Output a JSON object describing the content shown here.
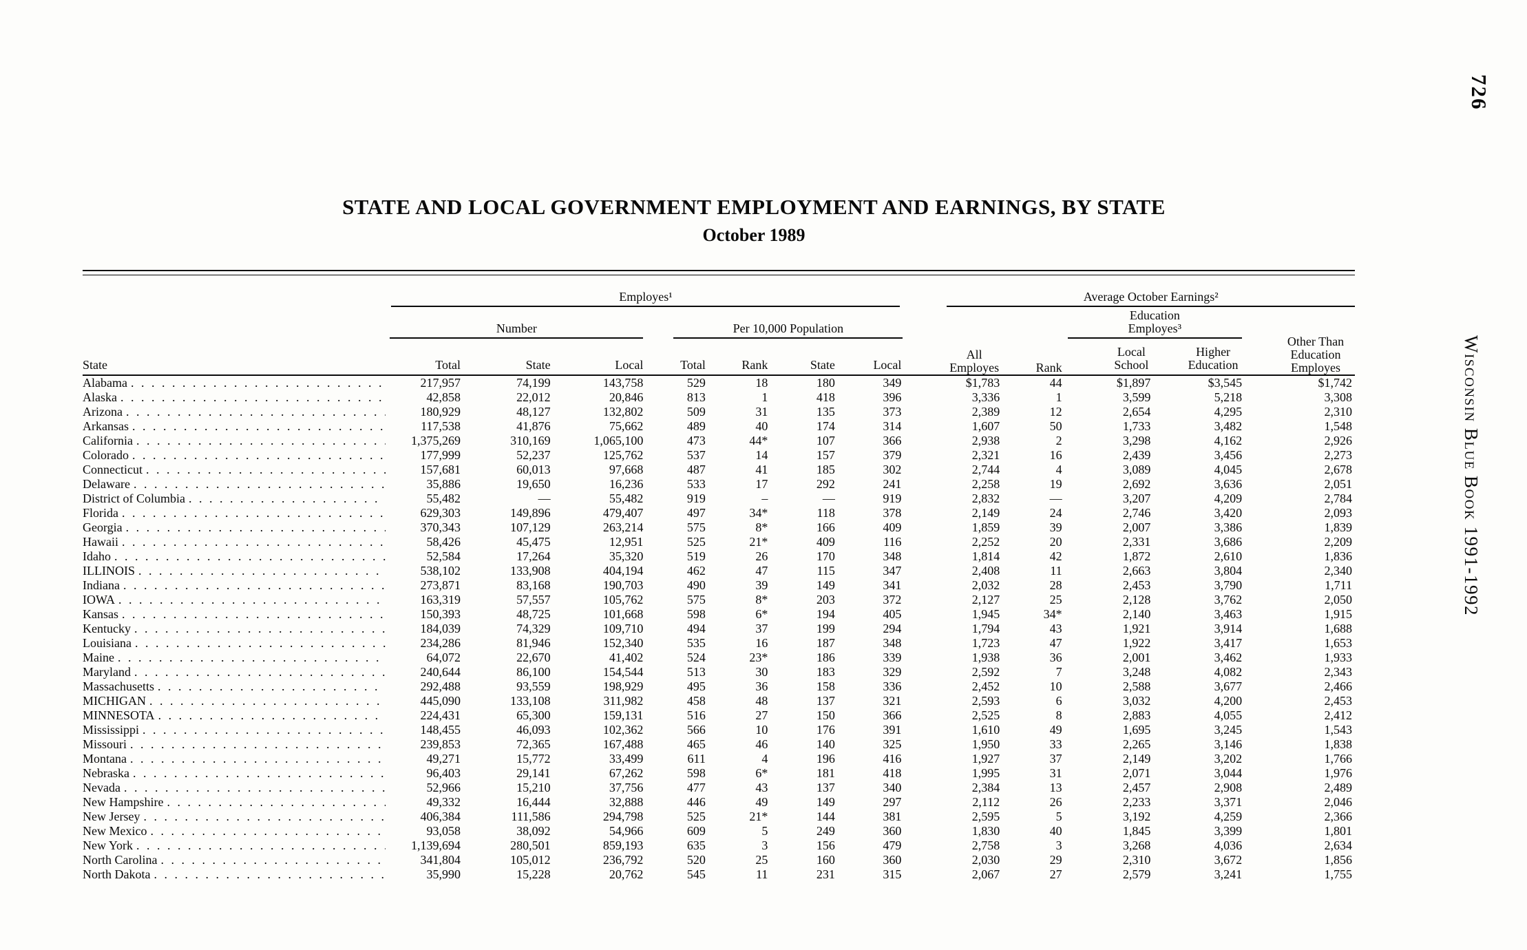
{
  "page": {
    "page_number": "726",
    "side_text": "Wisconsin Blue Book 1991-1992",
    "title": "STATE AND LOCAL GOVERNMENT EMPLOYMENT AND EARNINGS, BY STATE",
    "subtitle": "October 1989"
  },
  "table": {
    "header": {
      "state": "State",
      "employes_group": "Employes¹",
      "earnings_group": "Average October Earnings²",
      "number_group": "Number",
      "per_10000_group": "Per 10,000 Population",
      "education_group": "Education Employes³",
      "col_total_number": "Total",
      "col_state_number": "State",
      "col_local_number": "Local",
      "col_total_pop": "Total",
      "col_rank_pop": "Rank",
      "col_state_pop": "State",
      "col_local_pop": "Local",
      "col_all_employes": "All Employes",
      "col_rank_earnings": "Rank",
      "col_local_school": "Local School",
      "col_higher_education": "Higher Education",
      "col_other": "Other Than Education Employes"
    },
    "rows": [
      [
        "Alabama",
        "217,957",
        "74,199",
        "143,758",
        "529",
        "18",
        "180",
        "349",
        "$1,783",
        "44",
        "$1,897",
        "$3,545",
        "$1,742"
      ],
      [
        "Alaska",
        "42,858",
        "22,012",
        "20,846",
        "813",
        "1",
        "418",
        "396",
        "3,336",
        "1",
        "3,599",
        "5,218",
        "3,308"
      ],
      [
        "Arizona",
        "180,929",
        "48,127",
        "132,802",
        "509",
        "31",
        "135",
        "373",
        "2,389",
        "12",
        "2,654",
        "4,295",
        "2,310"
      ],
      [
        "Arkansas",
        "117,538",
        "41,876",
        "75,662",
        "489",
        "40",
        "174",
        "314",
        "1,607",
        "50",
        "1,733",
        "3,482",
        "1,548"
      ],
      [
        "California",
        "1,375,269",
        "310,169",
        "1,065,100",
        "473",
        "44*",
        "107",
        "366",
        "2,938",
        "2",
        "3,298",
        "4,162",
        "2,926"
      ],
      [
        "Colorado",
        "177,999",
        "52,237",
        "125,762",
        "537",
        "14",
        "157",
        "379",
        "2,321",
        "16",
        "2,439",
        "3,456",
        "2,273"
      ],
      [
        "Connecticut",
        "157,681",
        "60,013",
        "97,668",
        "487",
        "41",
        "185",
        "302",
        "2,744",
        "4",
        "3,089",
        "4,045",
        "2,678"
      ],
      [
        "Delaware",
        "35,886",
        "19,650",
        "16,236",
        "533",
        "17",
        "292",
        "241",
        "2,258",
        "19",
        "2,692",
        "3,636",
        "2,051"
      ],
      [
        "District of Columbia",
        "55,482",
        "—",
        "55,482",
        "919",
        "–",
        "—",
        "919",
        "2,832",
        "—",
        "3,207",
        "4,209",
        "2,784"
      ],
      [
        "Florida",
        "629,303",
        "149,896",
        "479,407",
        "497",
        "34*",
        "118",
        "378",
        "2,149",
        "24",
        "2,746",
        "3,420",
        "2,093"
      ],
      [
        "Georgia",
        "370,343",
        "107,129",
        "263,214",
        "575",
        "8*",
        "166",
        "409",
        "1,859",
        "39",
        "2,007",
        "3,386",
        "1,839"
      ],
      [
        "Hawaii",
        "58,426",
        "45,475",
        "12,951",
        "525",
        "21*",
        "409",
        "116",
        "2,252",
        "20",
        "2,331",
        "3,686",
        "2,209"
      ],
      [
        "Idaho",
        "52,584",
        "17,264",
        "35,320",
        "519",
        "26",
        "170",
        "348",
        "1,814",
        "42",
        "1,872",
        "2,610",
        "1,836"
      ],
      [
        "ILLINOIS",
        "538,102",
        "133,908",
        "404,194",
        "462",
        "47",
        "115",
        "347",
        "2,408",
        "11",
        "2,663",
        "3,804",
        "2,340"
      ],
      [
        "Indiana",
        "273,871",
        "83,168",
        "190,703",
        "490",
        "39",
        "149",
        "341",
        "2,032",
        "28",
        "2,453",
        "3,790",
        "1,711"
      ],
      [
        "IOWA",
        "163,319",
        "57,557",
        "105,762",
        "575",
        "8*",
        "203",
        "372",
        "2,127",
        "25",
        "2,128",
        "3,762",
        "2,050"
      ],
      [
        "Kansas",
        "150,393",
        "48,725",
        "101,668",
        "598",
        "6*",
        "194",
        "405",
        "1,945",
        "34*",
        "2,140",
        "3,463",
        "1,915"
      ],
      [
        "Kentucky",
        "184,039",
        "74,329",
        "109,710",
        "494",
        "37",
        "199",
        "294",
        "1,794",
        "43",
        "1,921",
        "3,914",
        "1,688"
      ],
      [
        "Louisiana",
        "234,286",
        "81,946",
        "152,340",
        "535",
        "16",
        "187",
        "348",
        "1,723",
        "47",
        "1,922",
        "3,417",
        "1,653"
      ],
      [
        "Maine",
        "64,072",
        "22,670",
        "41,402",
        "524",
        "23*",
        "186",
        "339",
        "1,938",
        "36",
        "2,001",
        "3,462",
        "1,933"
      ],
      [
        "Maryland",
        "240,644",
        "86,100",
        "154,544",
        "513",
        "30",
        "183",
        "329",
        "2,592",
        "7",
        "3,248",
        "4,082",
        "2,343"
      ],
      [
        "Massachusetts",
        "292,488",
        "93,559",
        "198,929",
        "495",
        "36",
        "158",
        "336",
        "2,452",
        "10",
        "2,588",
        "3,677",
        "2,466"
      ],
      [
        "MICHIGAN",
        "445,090",
        "133,108",
        "311,982",
        "458",
        "48",
        "137",
        "321",
        "2,593",
        "6",
        "3,032",
        "4,200",
        "2,453"
      ],
      [
        "MINNESOTA",
        "224,431",
        "65,300",
        "159,131",
        "516",
        "27",
        "150",
        "366",
        "2,525",
        "8",
        "2,883",
        "4,055",
        "2,412"
      ],
      [
        "Mississippi",
        "148,455",
        "46,093",
        "102,362",
        "566",
        "10",
        "176",
        "391",
        "1,610",
        "49",
        "1,695",
        "3,245",
        "1,543"
      ],
      [
        "Missouri",
        "239,853",
        "72,365",
        "167,488",
        "465",
        "46",
        "140",
        "325",
        "1,950",
        "33",
        "2,265",
        "3,146",
        "1,838"
      ],
      [
        "Montana",
        "49,271",
        "15,772",
        "33,499",
        "611",
        "4",
        "196",
        "416",
        "1,927",
        "37",
        "2,149",
        "3,202",
        "1,766"
      ],
      [
        "Nebraska",
        "96,403",
        "29,141",
        "67,262",
        "598",
        "6*",
        "181",
        "418",
        "1,995",
        "31",
        "2,071",
        "3,044",
        "1,976"
      ],
      [
        "Nevada",
        "52,966",
        "15,210",
        "37,756",
        "477",
        "43",
        "137",
        "340",
        "2,384",
        "13",
        "2,457",
        "2,908",
        "2,489"
      ],
      [
        "New Hampshire",
        "49,332",
        "16,444",
        "32,888",
        "446",
        "49",
        "149",
        "297",
        "2,112",
        "26",
        "2,233",
        "3,371",
        "2,046"
      ],
      [
        "New Jersey",
        "406,384",
        "111,586",
        "294,798",
        "525",
        "21*",
        "144",
        "381",
        "2,595",
        "5",
        "3,192",
        "4,259",
        "2,366"
      ],
      [
        "New Mexico",
        "93,058",
        "38,092",
        "54,966",
        "609",
        "5",
        "249",
        "360",
        "1,830",
        "40",
        "1,845",
        "3,399",
        "1,801"
      ],
      [
        "New York",
        "1,139,694",
        "280,501",
        "859,193",
        "635",
        "3",
        "156",
        "479",
        "2,758",
        "3",
        "3,268",
        "4,036",
        "2,634"
      ],
      [
        "North Carolina",
        "341,804",
        "105,012",
        "236,792",
        "520",
        "25",
        "160",
        "360",
        "2,030",
        "29",
        "2,310",
        "3,672",
        "1,856"
      ],
      [
        "North Dakota",
        "35,990",
        "15,228",
        "20,762",
        "545",
        "11",
        "231",
        "315",
        "2,067",
        "27",
        "2,579",
        "3,241",
        "1,755"
      ]
    ]
  }
}
